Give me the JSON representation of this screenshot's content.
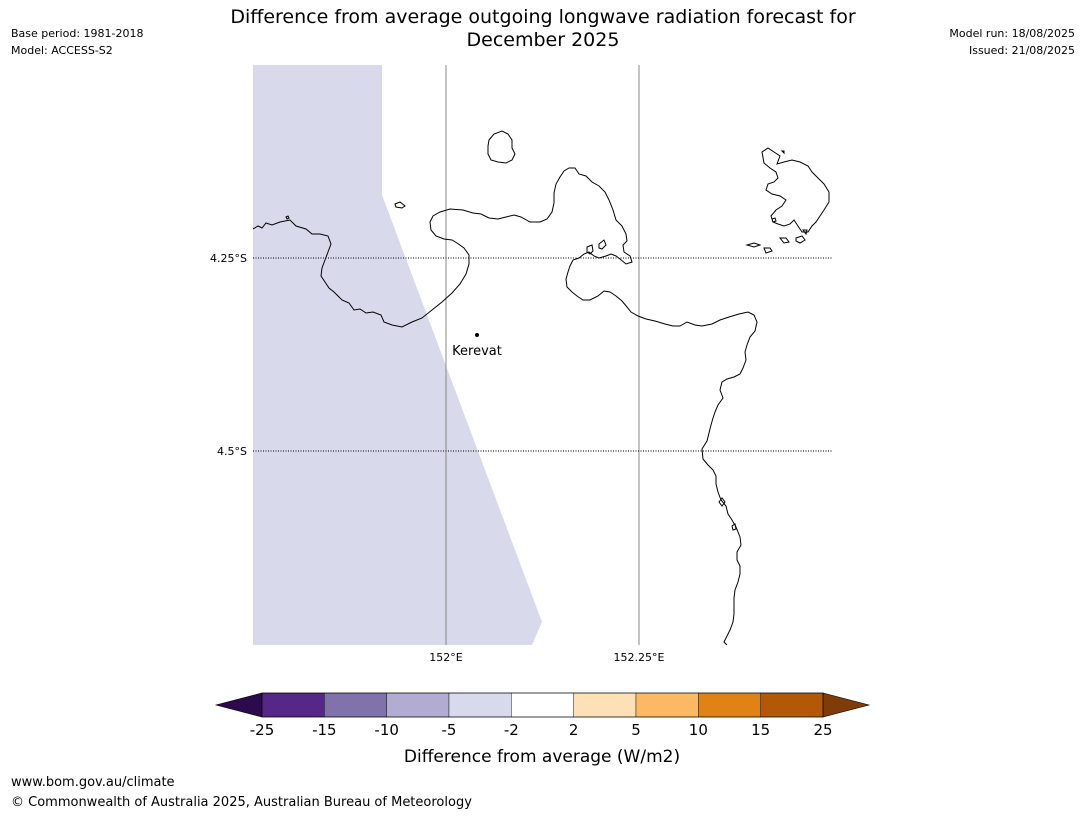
{
  "header": {
    "title_line1": "Difference from average outgoing longwave radiation forecast for",
    "title_line2": "December 2025",
    "base_period": "Base period: 1981-2018",
    "model": "Model: ACCESS-S2",
    "model_run": "Model run: 18/08/2025",
    "issued": "Issued: 21/08/2025"
  },
  "map": {
    "place_label": "Kerevat",
    "lat_labels": [
      "4.25°S",
      "4.5°S"
    ],
    "lon_labels": [
      "152°E",
      "152.25°E"
    ],
    "land_outline_color": "#000000",
    "shaded_anomaly_color": "#d8d9ea"
  },
  "colorbar": {
    "label": "Difference from average (W/m2)",
    "ticks": [
      "-25",
      "-15",
      "-10",
      "-5",
      "-2",
      "2",
      "5",
      "10",
      "15",
      "25"
    ],
    "colors": [
      "#2d0a4e",
      "#542788",
      "#8073ac",
      "#b2abd2",
      "#d8daeb",
      "#ffffff",
      "#fee0b6",
      "#fdb863",
      "#e08214",
      "#b35806",
      "#7f3b08"
    ]
  },
  "footer": {
    "url": "www.bom.gov.au/climate",
    "copyright": "© Commonwealth of Australia 2025, Australian Bureau of Meteorology"
  }
}
